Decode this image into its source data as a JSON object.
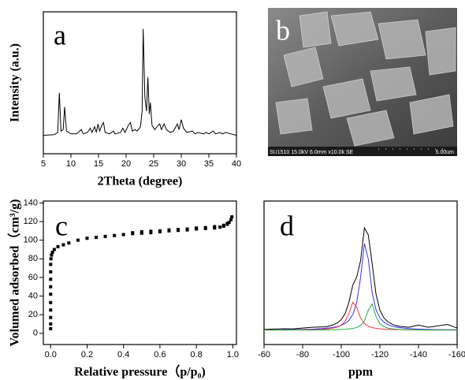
{
  "chart_data": [
    {
      "type": "line",
      "label": "a",
      "xlabel": "2Theta (degree)",
      "ylabel": "Intensity (a.u.)",
      "xlim": [
        5,
        40
      ],
      "xticks": [
        5,
        10,
        15,
        20,
        25,
        30,
        35,
        40
      ],
      "ylim": [
        0,
        100
      ],
      "x": [
        5,
        7,
        7.6,
        7.9,
        8.2,
        8.6,
        8.85,
        9.2,
        10,
        11,
        11.9,
        12.2,
        13,
        13.5,
        13.8,
        14.3,
        14.6,
        14.9,
        15.2,
        15.6,
        15.9,
        16.2,
        17,
        17.7,
        18,
        19,
        19.4,
        19.8,
        20.4,
        20.8,
        21.1,
        21.6,
        22,
        22.6,
        22.9,
        23.1,
        23.4,
        23.7,
        23.95,
        24.2,
        24.4,
        24.7,
        25.2,
        25.8,
        26.1,
        26.4,
        26.9,
        27.3,
        28,
        28.6,
        29.3,
        29.6,
        30,
        30.4,
        31,
        32,
        32.5,
        33,
        34,
        34.5,
        35,
        35.8,
        36.2,
        37,
        37.5,
        38,
        39,
        40
      ],
      "series": [
        {
          "color": "#000000",
          "values": [
            13,
            13.5,
            15,
            43,
            16,
            17,
            33,
            16,
            14,
            14,
            17,
            14,
            15,
            18,
            15,
            19,
            15,
            21,
            16,
            20,
            22,
            15,
            14,
            16,
            14,
            15,
            18,
            15,
            20,
            22,
            16,
            17,
            16,
            19,
            30,
            88,
            40,
            30,
            54,
            28,
            36,
            20,
            17,
            20,
            21,
            17,
            21,
            17,
            15,
            16,
            21,
            17,
            24,
            18,
            15,
            16,
            14,
            15,
            14,
            15,
            14,
            16,
            14,
            15,
            14,
            15,
            14,
            13
          ]
        }
      ]
    },
    {
      "type": "scatter",
      "label": "c",
      "xlabel": "Relative pressure（p/p₀)",
      "ylabel": "Volumed adsorbed（cm³/g)",
      "xlim": [
        -0.04,
        1.02
      ],
      "xticks": [
        {
          "value": 0,
          "label": "0.0"
        },
        0.2,
        0.4,
        0.6,
        0.8,
        {
          "value": 1,
          "label": "1.0"
        }
      ],
      "ylim": [
        -12,
        142
      ],
      "yticks": [
        0,
        20,
        40,
        60,
        80,
        100,
        120,
        140
      ],
      "x": [
        0,
        0,
        0,
        0,
        0,
        0,
        0,
        0,
        0,
        0,
        0.002,
        0.005,
        0.01,
        0.02,
        0.04,
        0.07,
        0.1,
        0.15,
        0.2,
        0.25,
        0.3,
        0.35,
        0.4,
        0.45,
        0.5,
        0.55,
        0.6,
        0.65,
        0.7,
        0.75,
        0.8,
        0.85,
        0.9,
        0.93,
        0.95,
        0.97,
        0.98,
        0.99,
        0.995,
        0.97,
        0.95,
        0.9,
        0.85,
        0.8,
        0.75,
        0.7,
        0.65,
        0.6,
        0.55,
        0.5,
        0.45
      ],
      "series": [
        {
          "color": "#000000",
          "values": [
            5,
            10,
            17,
            25,
            33,
            42,
            50,
            58,
            66,
            74,
            80,
            84,
            87,
            90,
            93,
            95,
            97,
            100,
            102,
            103,
            104,
            105,
            106,
            107,
            107.5,
            108,
            109,
            110,
            110.5,
            111,
            112,
            112.5,
            113,
            114,
            115,
            117,
            119,
            122,
            125,
            118,
            116,
            114.5,
            113.5,
            113,
            112,
            111.5,
            111,
            110,
            109.5,
            109,
            108
          ]
        }
      ]
    },
    {
      "type": "line",
      "label": "d",
      "xlabel": "ppm",
      "xlim": [
        -60,
        -160
      ],
      "xticks": [
        -60,
        -80,
        -100,
        -120,
        -140,
        -160
      ],
      "ylim": [
        0,
        100
      ],
      "x": [
        -60,
        -65,
        -70,
        -75,
        -80,
        -85,
        -90,
        -92,
        -94,
        -96,
        -98,
        -100,
        -102,
        -104,
        -106,
        -108,
        -110,
        -112,
        -114,
        -116,
        -118,
        -120,
        -122,
        -124,
        -126,
        -128,
        -130,
        -135,
        -140,
        -145,
        -150,
        -155,
        -160
      ],
      "series": [
        {
          "color": "#000000",
          "values": [
            10.5,
            10.8,
            11,
            10.9,
            11.5,
            12,
            12.3,
            12.3,
            13,
            13.8,
            15.1,
            17.4,
            21.5,
            29.6,
            41.6,
            47,
            58.4,
            81.3,
            76.4,
            56.4,
            35,
            24,
            18.7,
            16,
            14.4,
            13.3,
            12.7,
            12,
            13.5,
            12,
            13,
            14,
            11.5
          ]
        },
        {
          "color": "#3333ff",
          "values": [
            10.2,
            10.2,
            10.3,
            10.4,
            10.5,
            10.7,
            11.1,
            11.3,
            11.6,
            12,
            12.5,
            13.4,
            14.7,
            16.9,
            20.9,
            29.1,
            46.6,
            70.3,
            59.6,
            36.3,
            24.2,
            18.6,
            15.6,
            13.9,
            12.9,
            12.2,
            11.8,
            11.1,
            10.7,
            10.5,
            10.4,
            10.3,
            10.3
          ]
        },
        {
          "color": "#ff3333",
          "values": [
            10.1,
            10.1,
            10.1,
            10.2,
            10.3,
            10.4,
            10.6,
            10.8,
            11.1,
            11.5,
            12.2,
            13.5,
            16.2,
            21.8,
            29.5,
            26,
            18.5,
            14.6,
            12.8,
            11.8,
            11.3,
            10.9,
            10.7,
            10.6,
            10.5,
            10.4,
            10.4,
            10.2,
            10.2,
            10.1,
            10.1,
            10.1,
            10.1
          ]
        },
        {
          "color": "#22aa44",
          "values": [
            10.1,
            10.1,
            10.1,
            10.1,
            10.1,
            10.1,
            10.2,
            10.2,
            10.3,
            10.3,
            10.4,
            10.5,
            10.6,
            10.9,
            11.2,
            11.9,
            13.3,
            16.4,
            24,
            28.3,
            19.5,
            14.5,
            12.4,
            11.5,
            11,
            10.7,
            10.5,
            10.3,
            10.2,
            10.1,
            10.1,
            10.1,
            10.1
          ]
        }
      ]
    }
  ],
  "image": {
    "label": "b",
    "caption": "SU1510 15.0kV 6.0mm x10.0k SE",
    "scale": "5.00um"
  }
}
